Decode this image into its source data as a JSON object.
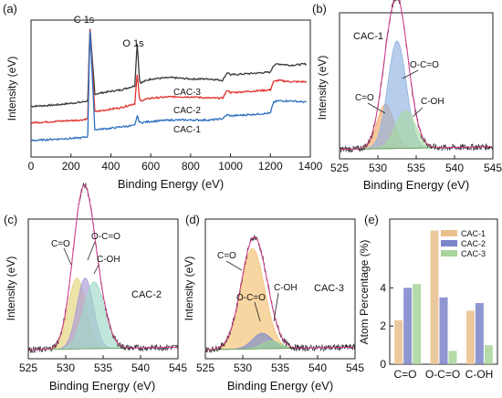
{
  "chart_data": [
    {
      "panel": "(a)",
      "type": "line",
      "xlabel": "Binding Energy (eV)",
      "ylabel": "Intensity (eV)",
      "xlim": [
        0,
        1400
      ],
      "xticks": [
        0,
        200,
        400,
        600,
        800,
        1000,
        1200,
        1400
      ],
      "annotations": [
        "C 1s",
        "O 1s"
      ],
      "series": [
        {
          "name": "CAC-3",
          "color": "#3a3a3a",
          "x": [
            0,
            120,
            250,
            285,
            295,
            320,
            400,
            450,
            520,
            532,
            545,
            600,
            700,
            800,
            900,
            960,
            985,
            1000,
            1100,
            1200,
            1215,
            1240,
            1300,
            1380
          ],
          "y": [
            0.37,
            0.38,
            0.4,
            0.41,
            0.95,
            0.46,
            0.48,
            0.49,
            0.52,
            0.83,
            0.54,
            0.57,
            0.58,
            0.57,
            0.57,
            0.56,
            0.62,
            0.6,
            0.61,
            0.62,
            0.67,
            0.68,
            0.67,
            0.68
          ]
        },
        {
          "name": "CAC-2",
          "color": "#e0322d",
          "x": [
            0,
            120,
            250,
            285,
            295,
            320,
            400,
            450,
            520,
            532,
            545,
            600,
            700,
            800,
            900,
            960,
            985,
            1000,
            1100,
            1200,
            1215,
            1240,
            1300,
            1380
          ],
          "y": [
            0.25,
            0.26,
            0.27,
            0.28,
            0.95,
            0.33,
            0.35,
            0.36,
            0.39,
            0.6,
            0.41,
            0.43,
            0.44,
            0.44,
            0.43,
            0.43,
            0.49,
            0.47,
            0.48,
            0.49,
            0.55,
            0.56,
            0.55,
            0.55
          ]
        },
        {
          "name": "CAC-1",
          "color": "#2d6fbf",
          "x": [
            0,
            120,
            250,
            285,
            295,
            320,
            400,
            450,
            520,
            532,
            545,
            600,
            700,
            800,
            900,
            960,
            985,
            1000,
            1100,
            1200,
            1215,
            1240,
            1300,
            1380
          ],
          "y": [
            0.12,
            0.13,
            0.14,
            0.15,
            0.95,
            0.2,
            0.21,
            0.22,
            0.23,
            0.3,
            0.25,
            0.26,
            0.27,
            0.27,
            0.27,
            0.28,
            0.31,
            0.3,
            0.31,
            0.32,
            0.4,
            0.41,
            0.41,
            0.4
          ]
        }
      ]
    },
    {
      "panel": "(b)",
      "type": "area",
      "sample": "CAC-1",
      "xlabel": "Binding Energy (eV)",
      "ylabel": "Intensity (eV)",
      "xlim": [
        525,
        545
      ],
      "xticks": [
        525,
        530,
        535,
        540,
        545
      ],
      "peaks": [
        {
          "name": "C=O",
          "center": 531.0,
          "height": 0.33,
          "width": 1.1,
          "color": "#f2a968"
        },
        {
          "name": "O-C=O",
          "center": 532.5,
          "height": 0.8,
          "width": 1.2,
          "color": "#8fb2e0"
        },
        {
          "name": "C-OH",
          "center": 533.6,
          "height": 0.28,
          "width": 1.3,
          "color": "#a8d9a2"
        }
      ]
    },
    {
      "panel": "(c)",
      "type": "area",
      "sample": "CAC-2",
      "xlabel": "Binding Energy (eV)",
      "ylabel": "Intensity (eV)",
      "xlim": [
        525,
        545
      ],
      "xticks": [
        525,
        530,
        535,
        540,
        545
      ],
      "peaks": [
        {
          "name": "C=O",
          "center": 531.5,
          "height": 0.55,
          "width": 1.2,
          "color": "#e3d27a"
        },
        {
          "name": "O-C=O",
          "center": 532.6,
          "height": 0.55,
          "width": 1.1,
          "color": "#a79ad8"
        },
        {
          "name": "C-OH",
          "center": 533.8,
          "height": 0.52,
          "width": 1.4,
          "color": "#9fd9c8"
        }
      ]
    },
    {
      "panel": "(d)",
      "type": "area",
      "sample": "CAC-3",
      "xlabel": "Binding Energy (eV)",
      "ylabel": "Intensity (eV)",
      "xlim": [
        525,
        545
      ],
      "xticks": [
        525,
        530,
        535,
        540,
        545
      ],
      "peaks": [
        {
          "name": "C=O",
          "center": 531.3,
          "height": 0.78,
          "width": 1.6,
          "color": "#f2c070"
        },
        {
          "name": "O-C=O",
          "center": 532.6,
          "height": 0.12,
          "width": 1.3,
          "color": "#7a88d0"
        },
        {
          "name": "C-OH",
          "center": 533.8,
          "height": 0.06,
          "width": 1.3,
          "color": "#9ad59a"
        }
      ]
    },
    {
      "panel": "(e)",
      "type": "bar",
      "ylabel": "Atom Percentage (%)",
      "ylim": [
        0,
        7.6
      ],
      "yticks": [
        0,
        2,
        4
      ],
      "categories": [
        "C=O",
        "O-C=O",
        "C-OH"
      ],
      "series": [
        {
          "name": "CAC-1",
          "color": "#e9c08c",
          "values": [
            2.3,
            7.0,
            2.8
          ]
        },
        {
          "name": "CAC-2",
          "color": "#7b84c9",
          "values": [
            4.0,
            3.5,
            3.2
          ]
        },
        {
          "name": "CAC-3",
          "color": "#a7d59a",
          "values": [
            4.2,
            0.7,
            1.0
          ]
        }
      ]
    }
  ],
  "labels": {
    "panel_a": "(a)",
    "panel_b": "(b)",
    "panel_c": "(c)",
    "panel_d": "(d)",
    "panel_e": "(e)",
    "xlabel": "Binding Energy (eV)",
    "ylabel": "Intensity (eV)",
    "e_ylabel": "Atom Percentage (%)",
    "c1s": "C 1s",
    "o1s": "O 1s",
    "cac1": "CAC-1",
    "cac2": "CAC-2",
    "cac3": "CAC-3",
    "co": "C=O",
    "oco": "O-C=O",
    "coh": "C-OH"
  }
}
